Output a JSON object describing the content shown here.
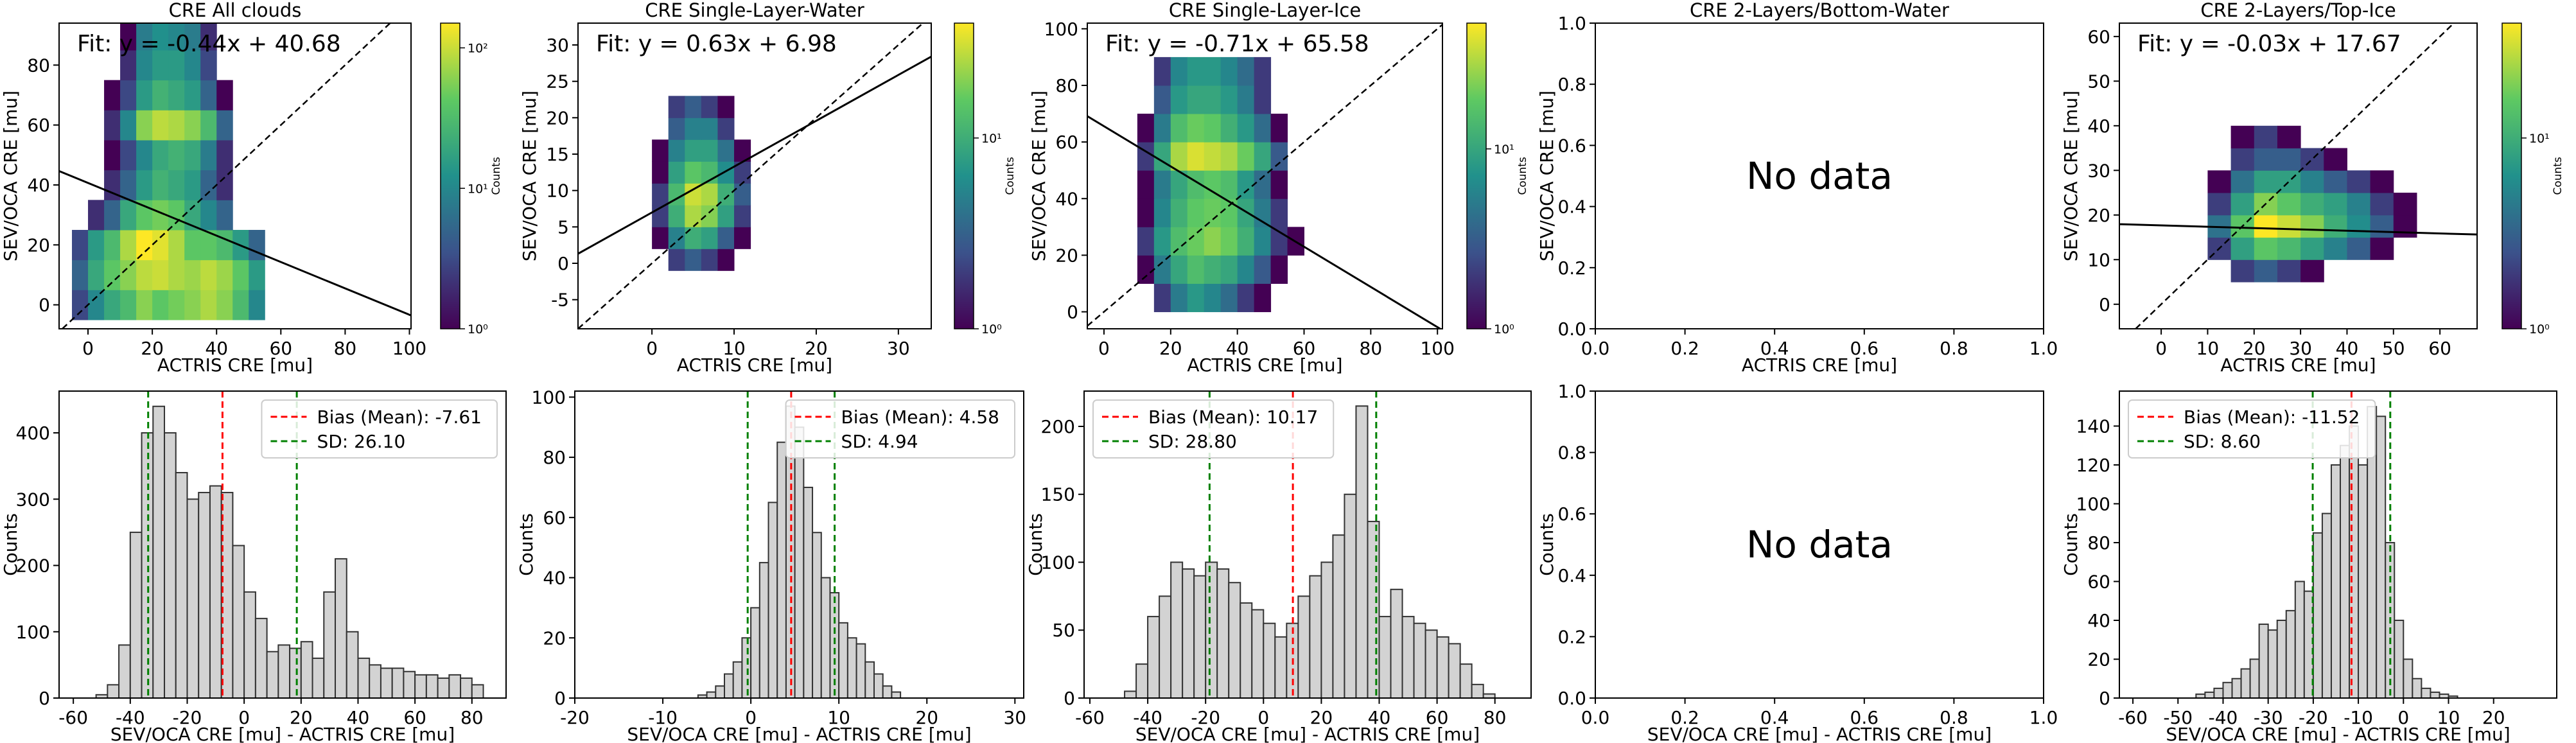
{
  "chart_data": [
    {
      "type": "heatmap",
      "title": "CRE All clouds",
      "xlabel": "ACTRIS CRE [mu]",
      "ylabel": "SEV/OCA CRE [mu]",
      "xlim": [
        -9,
        100.5
      ],
      "ylim": [
        -8,
        94
      ],
      "xticks": [
        0,
        20,
        40,
        60,
        80,
        100
      ],
      "yticks": [
        0,
        20,
        40,
        60,
        80
      ],
      "colormap": "viridis",
      "x_edges": [
        -5,
        0,
        5,
        10,
        15,
        20,
        25,
        30,
        35,
        40,
        45,
        50,
        55
      ],
      "y_edges": [
        -5,
        5,
        15,
        25,
        35,
        45,
        55,
        65,
        75,
        85,
        95
      ],
      "counts": [
        [
          3,
          10,
          20,
          30,
          60,
          40,
          50,
          60,
          80,
          60,
          30,
          10
        ],
        [
          5,
          20,
          40,
          60,
          90,
          100,
          80,
          70,
          90,
          70,
          40,
          15
        ],
        [
          3,
          15,
          30,
          80,
          150,
          120,
          80,
          40,
          40,
          30,
          15,
          5
        ],
        [
          null,
          2,
          5,
          20,
          40,
          50,
          40,
          20,
          10,
          5,
          null,
          null
        ],
        [
          null,
          null,
          2,
          5,
          15,
          25,
          20,
          15,
          5,
          2,
          null,
          null
        ],
        [
          null,
          null,
          1,
          3,
          10,
          20,
          25,
          20,
          8,
          2,
          null,
          null
        ],
        [
          null,
          null,
          2,
          10,
          60,
          90,
          80,
          60,
          30,
          5,
          null,
          null
        ],
        [
          null,
          null,
          1,
          3,
          15,
          25,
          20,
          15,
          5,
          1,
          null,
          null
        ],
        [
          null,
          null,
          null,
          2,
          10,
          15,
          15,
          10,
          3,
          null,
          null,
          null
        ],
        [
          null,
          null,
          null,
          1,
          8,
          12,
          10,
          8,
          2,
          null,
          null,
          null
        ]
      ],
      "fit": {
        "slope": -0.44,
        "intercept": 40.68,
        "label": "Fit: y = -0.44x + 40.68"
      },
      "colorbar": {
        "label": "Counts",
        "log": true,
        "lim": [
          1,
          150
        ],
        "ticks": [
          {
            "value": 1,
            "label": "10⁰"
          },
          {
            "value": 10,
            "label": "10¹"
          },
          {
            "value": 100,
            "label": "10²"
          }
        ]
      }
    },
    {
      "type": "heatmap",
      "title": "CRE Single-Layer-Water",
      "xlabel": "ACTRIS CRE [mu]",
      "ylabel": "SEV/OCA CRE [mu]",
      "xlim": [
        -9,
        34
      ],
      "ylim": [
        -9,
        33
      ],
      "xticks": [
        0,
        10,
        20,
        30
      ],
      "yticks": [
        -5,
        0,
        5,
        10,
        15,
        20,
        25,
        30
      ],
      "colormap": "viridis",
      "x_edges": [
        0,
        2,
        4,
        6,
        8,
        10,
        12
      ],
      "y_edges": [
        -1,
        2,
        5,
        8,
        11,
        14,
        17,
        20,
        23
      ],
      "counts": [
        [
          null,
          2,
          3,
          2,
          1,
          null
        ],
        [
          1,
          5,
          10,
          8,
          3,
          1
        ],
        [
          2,
          10,
          25,
          20,
          8,
          2
        ],
        [
          2,
          12,
          30,
          25,
          10,
          3
        ],
        [
          1,
          8,
          15,
          12,
          6,
          2
        ],
        [
          1,
          5,
          8,
          8,
          4,
          1
        ],
        [
          null,
          3,
          5,
          5,
          2,
          null
        ],
        [
          null,
          2,
          3,
          2,
          1,
          null
        ]
      ],
      "fit": {
        "slope": 0.63,
        "intercept": 6.98,
        "label": "Fit: y = 0.63x + 6.98"
      },
      "colorbar": {
        "label": "Counts",
        "log": true,
        "lim": [
          1,
          40
        ],
        "ticks": [
          {
            "value": 1,
            "label": "10⁰"
          },
          {
            "value": 10,
            "label": "10¹"
          }
        ]
      }
    },
    {
      "type": "heatmap",
      "title": "CRE Single-Layer-Ice",
      "xlabel": "ACTRIS CRE [mu]",
      "ylabel": "SEV/OCA CRE [mu]",
      "xlim": [
        -5,
        101.5
      ],
      "ylim": [
        -6,
        102
      ],
      "xticks": [
        0,
        20,
        40,
        60,
        80,
        100
      ],
      "yticks": [
        0,
        20,
        40,
        60,
        80,
        100
      ],
      "colormap": "viridis",
      "x_edges": [
        10,
        15,
        20,
        25,
        30,
        35,
        40,
        45,
        50,
        55,
        60
      ],
      "y_edges": [
        0,
        10,
        20,
        30,
        40,
        50,
        60,
        70,
        80,
        90
      ],
      "counts": [
        [
          null,
          2,
          5,
          8,
          6,
          4,
          2,
          1,
          null,
          null
        ],
        [
          1,
          5,
          10,
          15,
          12,
          10,
          6,
          3,
          1,
          null
        ],
        [
          2,
          8,
          15,
          20,
          25,
          20,
          12,
          6,
          2,
          1
        ],
        [
          1,
          6,
          12,
          18,
          20,
          18,
          10,
          5,
          2,
          null
        ],
        [
          1,
          5,
          10,
          15,
          18,
          15,
          8,
          4,
          1,
          null
        ],
        [
          2,
          10,
          30,
          40,
          35,
          30,
          20,
          10,
          3,
          null
        ],
        [
          1,
          5,
          15,
          20,
          18,
          12,
          8,
          4,
          1,
          null
        ],
        [
          null,
          3,
          8,
          10,
          10,
          8,
          5,
          2,
          null,
          null
        ],
        [
          null,
          2,
          6,
          8,
          8,
          6,
          4,
          2,
          null,
          null
        ]
      ],
      "fit": {
        "slope": -0.71,
        "intercept": 65.58,
        "label": "Fit: y = -0.71x + 65.58"
      },
      "colorbar": {
        "label": "Counts",
        "log": true,
        "lim": [
          1,
          50
        ],
        "ticks": [
          {
            "value": 1,
            "label": "10⁰"
          },
          {
            "value": 10,
            "label": "10¹"
          }
        ]
      }
    },
    {
      "type": "heatmap",
      "title": "CRE 2-Layers/Bottom-Water",
      "xlabel": "ACTRIS CRE [mu]",
      "ylabel": "SEV/OCA CRE [mu]",
      "xlim": [
        0,
        1
      ],
      "ylim": [
        0,
        1
      ],
      "xticks": [
        {
          "value": 0,
          "label": "0.0"
        },
        {
          "value": 0.2,
          "label": "0.2"
        },
        {
          "value": 0.4,
          "label": "0.4"
        },
        {
          "value": 0.6,
          "label": "0.6"
        },
        {
          "value": 0.8,
          "label": "0.8"
        },
        {
          "value": 1,
          "label": "1.0"
        }
      ],
      "yticks": [
        {
          "value": 0,
          "label": "0.0"
        },
        {
          "value": 0.2,
          "label": "0.2"
        },
        {
          "value": 0.4,
          "label": "0.4"
        },
        {
          "value": 0.6,
          "label": "0.6"
        },
        {
          "value": 0.8,
          "label": "0.8"
        },
        {
          "value": 1,
          "label": "1.0"
        }
      ],
      "annotation": "No data"
    },
    {
      "type": "heatmap",
      "title": "CRE 2-Layers/Top-Ice",
      "xlabel": "ACTRIS CRE [mu]",
      "ylabel": "SEV/OCA CRE [mu]",
      "xlim": [
        -9,
        68
      ],
      "ylim": [
        -5.5,
        63
      ],
      "xticks": [
        0,
        10,
        20,
        30,
        40,
        50,
        60
      ],
      "yticks": [
        0,
        10,
        20,
        30,
        40,
        50,
        60
      ],
      "colormap": "viridis",
      "x_edges": [
        10,
        15,
        20,
        25,
        30,
        35,
        40,
        45,
        50,
        55
      ],
      "y_edges": [
        5,
        10,
        15,
        20,
        25,
        30,
        35,
        40
      ],
      "counts": [
        [
          null,
          2,
          3,
          2,
          1,
          null,
          null,
          null,
          null
        ],
        [
          2,
          8,
          15,
          12,
          8,
          5,
          3,
          1,
          null
        ],
        [
          4,
          15,
          40,
          30,
          20,
          10,
          6,
          3,
          1
        ],
        [
          2,
          8,
          20,
          15,
          10,
          8,
          5,
          2,
          1
        ],
        [
          1,
          4,
          8,
          8,
          5,
          3,
          2,
          1,
          null
        ],
        [
          null,
          2,
          3,
          3,
          2,
          1,
          null,
          null,
          null
        ],
        [
          null,
          1,
          2,
          1,
          null,
          null,
          null,
          null,
          null
        ]
      ],
      "fit": {
        "slope": -0.03,
        "intercept": 17.67,
        "label": "Fit: y = -0.03x + 17.67"
      },
      "colorbar": {
        "label": "Counts",
        "log": true,
        "lim": [
          1,
          40
        ],
        "ticks": [
          {
            "value": 1,
            "label": "10⁰"
          },
          {
            "value": 10,
            "label": "10¹"
          }
        ]
      }
    },
    {
      "type": "histogram",
      "xlabel": "SEV/OCA CRE [mu] - ACTRIS CRE [mu]",
      "ylabel": "Counts",
      "xlim": [
        -65,
        92
      ],
      "ylim": [
        0,
        463
      ],
      "xticks": [
        -60,
        -40,
        -20,
        0,
        20,
        40,
        60,
        80
      ],
      "yticks": [
        0,
        100,
        200,
        300,
        400
      ],
      "color": "#d3d3d3",
      "bins": [
        -52,
        -48,
        -44,
        -40,
        -36,
        -32,
        -28,
        -24,
        -20,
        -16,
        -12,
        -8,
        -4,
        0,
        4,
        8,
        12,
        16,
        20,
        24,
        28,
        32,
        36,
        40,
        44,
        48,
        52,
        56,
        60,
        64,
        68,
        72,
        76,
        80,
        84
      ],
      "counts": [
        5,
        20,
        80,
        250,
        400,
        440,
        400,
        340,
        300,
        310,
        320,
        310,
        230,
        160,
        120,
        70,
        80,
        75,
        85,
        60,
        160,
        210,
        100,
        60,
        50,
        45,
        45,
        40,
        35,
        35,
        30,
        35,
        30,
        20
      ],
      "bias": {
        "name": "Bias (Mean): -7.61",
        "value": -7.61,
        "color": "red"
      },
      "sd": {
        "name": "SD: 26.10",
        "value": 26.1,
        "color": "green"
      },
      "legend": "upper right"
    },
    {
      "type": "histogram",
      "xlabel": "SEV/OCA CRE [mu] - ACTRIS CRE [mu]",
      "ylabel": "Counts",
      "xlim": [
        -20,
        31
      ],
      "ylim": [
        0,
        102
      ],
      "xticks": [
        -20,
        -10,
        0,
        10,
        20,
        30
      ],
      "yticks": [
        0,
        20,
        40,
        60,
        80,
        100
      ],
      "color": "#d3d3d3",
      "bins": [
        -6,
        -5,
        -4,
        -3,
        -2,
        -1,
        0,
        1,
        2,
        3,
        4,
        5,
        6,
        7,
        8,
        9,
        10,
        11,
        12,
        13,
        14,
        15,
        16,
        17
      ],
      "counts": [
        1,
        2,
        4,
        8,
        12,
        20,
        30,
        45,
        65,
        85,
        97,
        90,
        70,
        55,
        40,
        35,
        25,
        20,
        18,
        12,
        8,
        4,
        2
      ],
      "bias": {
        "name": "Bias (Mean): 4.58",
        "value": 4.58,
        "color": "red"
      },
      "sd": {
        "name": "SD: 4.94",
        "value": 4.94,
        "color": "green"
      },
      "legend": "upper right"
    },
    {
      "type": "histogram",
      "xlabel": "SEV/OCA CRE [mu] - ACTRIS CRE [mu]",
      "ylabel": "Counts",
      "xlim": [
        -62,
        92.5
      ],
      "ylim": [
        0,
        226
      ],
      "xticks": [
        -60,
        -40,
        -20,
        0,
        20,
        40,
        60,
        80
      ],
      "yticks": [
        0,
        50,
        100,
        150,
        200
      ],
      "color": "#d3d3d3",
      "bins": [
        -48,
        -44,
        -40,
        -36,
        -32,
        -28,
        -24,
        -20,
        -16,
        -12,
        -8,
        -4,
        0,
        4,
        8,
        12,
        16,
        20,
        24,
        28,
        32,
        36,
        40,
        44,
        48,
        52,
        56,
        60,
        64,
        68,
        72,
        76,
        80
      ],
      "counts": [
        5,
        25,
        60,
        75,
        100,
        95,
        90,
        100,
        95,
        85,
        70,
        65,
        55,
        45,
        55,
        75,
        90,
        100,
        120,
        150,
        215,
        130,
        60,
        80,
        60,
        55,
        50,
        45,
        40,
        25,
        10,
        3
      ],
      "bias": {
        "name": "Bias (Mean): 10.17",
        "value": 10.17,
        "color": "red"
      },
      "sd": {
        "name": "SD: 28.80",
        "value": 28.8,
        "color": "green"
      },
      "legend": "upper left"
    },
    {
      "type": "histogram",
      "xlabel": "SEV/OCA CRE [mu] - ACTRIS CRE [mu]",
      "ylabel": "Counts",
      "xlim": [
        0,
        1
      ],
      "ylim": [
        0,
        1
      ],
      "xticks": [
        {
          "value": 0,
          "label": "0.0"
        },
        {
          "value": 0.2,
          "label": "0.2"
        },
        {
          "value": 0.4,
          "label": "0.4"
        },
        {
          "value": 0.6,
          "label": "0.6"
        },
        {
          "value": 0.8,
          "label": "0.8"
        },
        {
          "value": 1,
          "label": "1.0"
        }
      ],
      "yticks": [
        {
          "value": 0,
          "label": "0.0"
        },
        {
          "value": 0.2,
          "label": "0.2"
        },
        {
          "value": 0.4,
          "label": "0.4"
        },
        {
          "value": 0.6,
          "label": "0.6"
        },
        {
          "value": 0.8,
          "label": "0.8"
        },
        {
          "value": 1,
          "label": "1.0"
        }
      ],
      "annotation": "No data"
    },
    {
      "type": "histogram",
      "xlabel": "SEV/OCA CRE [mu] - ACTRIS CRE [mu]",
      "ylabel": "Counts",
      "xlim": [
        -63,
        34
      ],
      "ylim": [
        0,
        158
      ],
      "xticks": [
        -60,
        -50,
        -40,
        -30,
        -20,
        -10,
        0,
        10,
        20
      ],
      "yticks": [
        0,
        20,
        40,
        60,
        80,
        100,
        120,
        140
      ],
      "color": "#d3d3d3",
      "bins": [
        -46,
        -44,
        -42,
        -40,
        -38,
        -36,
        -34,
        -32,
        -30,
        -28,
        -26,
        -24,
        -22,
        -20,
        -18,
        -16,
        -14,
        -12,
        -10,
        -8,
        -6,
        -4,
        -2,
        0,
        2,
        4,
        6,
        8,
        10,
        12
      ],
      "counts": [
        2,
        3,
        5,
        8,
        10,
        15,
        20,
        38,
        35,
        40,
        45,
        60,
        55,
        85,
        95,
        120,
        130,
        140,
        120,
        150,
        145,
        80,
        40,
        20,
        10,
        5,
        3,
        2,
        1
      ],
      "bias": {
        "name": "Bias (Mean): -11.52",
        "value": -11.52,
        "color": "red"
      },
      "sd": {
        "name": "SD: 8.60",
        "value": 8.6,
        "color": "green"
      },
      "legend": "upper left"
    }
  ]
}
